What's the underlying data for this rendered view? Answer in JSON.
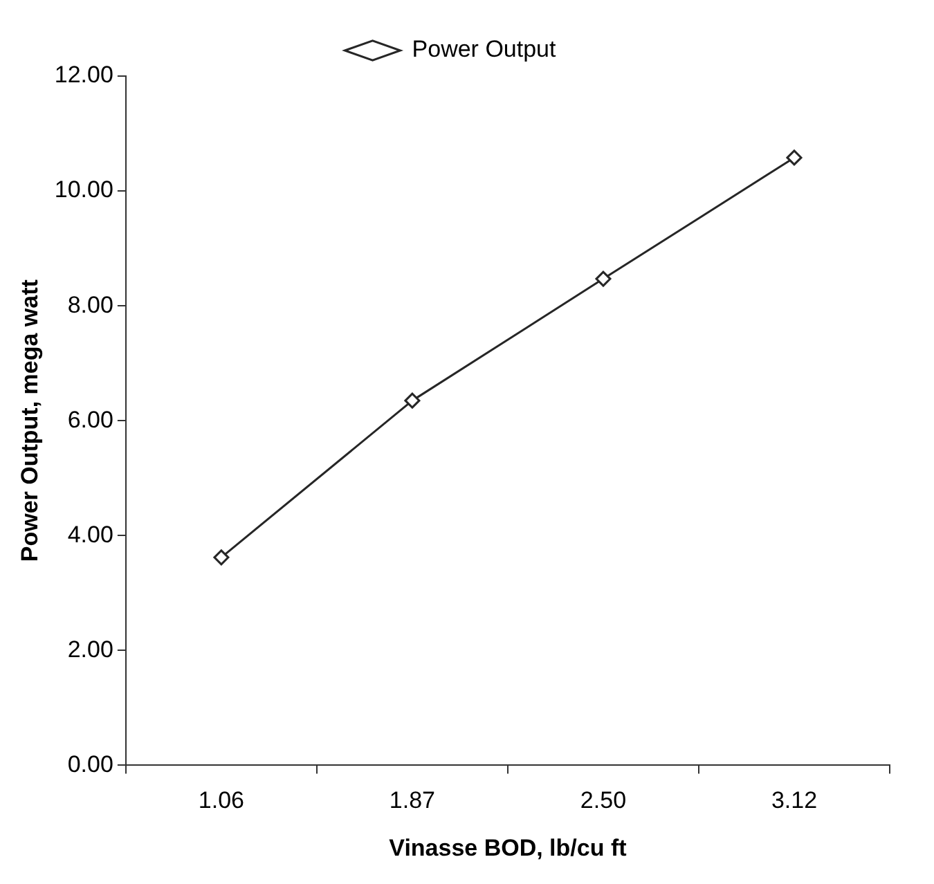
{
  "chart_data": {
    "type": "line",
    "xlabel": "Vinasse BOD, lb/cu ft",
    "ylabel": "Power Output, mega watt",
    "categories": [
      "1.06",
      "1.87",
      "2.50",
      "3.12"
    ],
    "series": [
      {
        "name": "Power Output",
        "color": "#262626",
        "values": [
          3.62,
          6.35,
          8.47,
          10.58
        ]
      }
    ],
    "ylim": [
      0,
      12
    ],
    "yticks": [
      {
        "value": 0,
        "label": "0.00"
      },
      {
        "value": 2,
        "label": "2.00"
      },
      {
        "value": 4,
        "label": "4.00"
      },
      {
        "value": 6,
        "label": "6.00"
      },
      {
        "value": 8,
        "label": "8.00"
      },
      {
        "value": 10,
        "label": "10.00"
      },
      {
        "value": 12,
        "label": "12.00"
      }
    ],
    "grid": false,
    "legend": "top",
    "marker": "diamond",
    "line_style": "solid"
  }
}
